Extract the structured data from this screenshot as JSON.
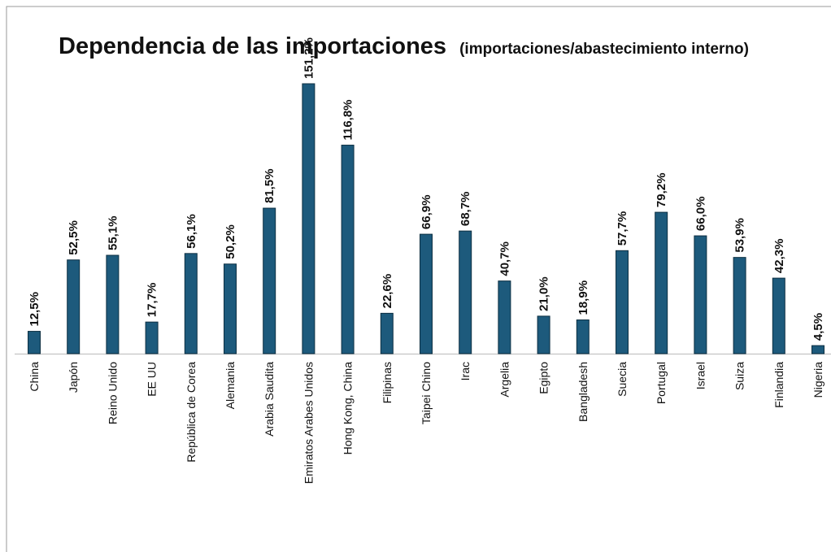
{
  "chart_data": {
    "type": "bar",
    "title": "Dependencia de las importaciones",
    "subtitle": "(importaciones/abastecimiento interno)",
    "categories": [
      "China",
      "Japón",
      "Reino Unido",
      "EE UU",
      "República de Corea",
      "Alemania",
      "Arabia Saudita",
      "Emiratos Arabes Unidos",
      "Hong Kong, China",
      "Filipinas",
      "Taipei Chino",
      "Irac",
      "Argelia",
      "Egipto",
      "Bangladesh",
      "Suecia",
      "Portugal",
      "Israel",
      "Suiza",
      "Finlandia",
      "Nigeria"
    ],
    "values": [
      12.5,
      52.5,
      55.1,
      17.7,
      56.1,
      50.2,
      81.5,
      151.2,
      116.8,
      22.6,
      66.9,
      68.7,
      40.7,
      21.0,
      18.9,
      57.7,
      79.2,
      66.0,
      53.9,
      42.3,
      4.5
    ],
    "value_labels": [
      "12,5%",
      "52,5%",
      "55,1%",
      "17,7%",
      "56,1%",
      "50,2%",
      "81,5%",
      "151,2%",
      "116,8%",
      "22,6%",
      "66,9%",
      "68,7%",
      "40,7%",
      "21,0%",
      "18,9%",
      "57,7%",
      "79,2%",
      "66,0%",
      "53,9%",
      "42,3%",
      "4,5%"
    ],
    "color": "#1d5a7c"
  }
}
